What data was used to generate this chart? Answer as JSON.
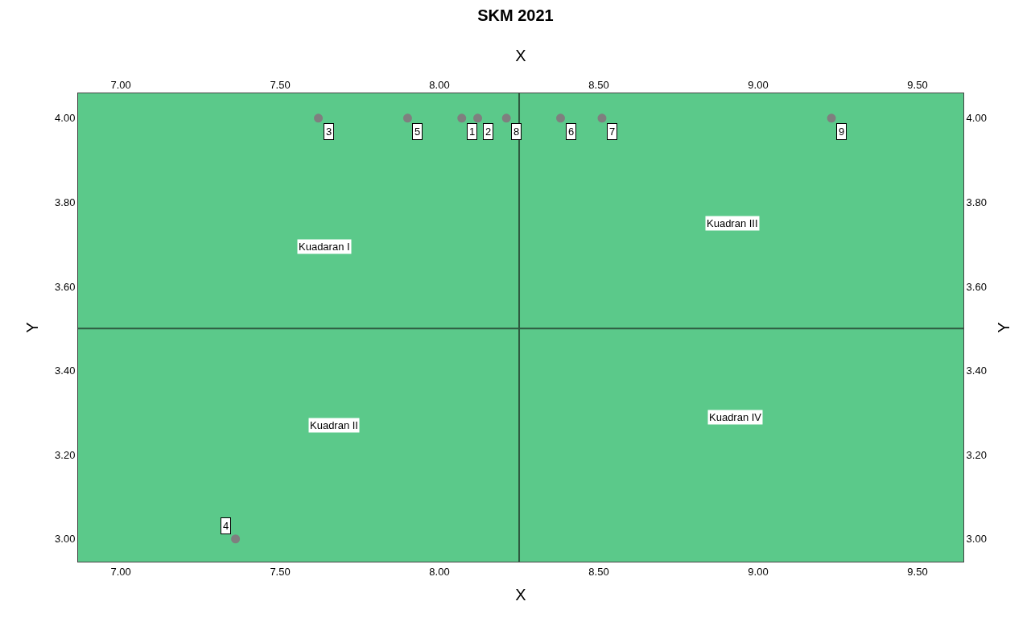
{
  "chart_data": {
    "type": "scatter",
    "title": "SKM 2021",
    "xlabel": "X",
    "x2label": "X",
    "ylabel": "Y",
    "y2label": "Y",
    "x": [
      8.07,
      8.12,
      7.62,
      7.36,
      7.9,
      8.38,
      8.51,
      8.21,
      9.23
    ],
    "series": [
      {
        "color": "#7f7f7f",
        "values": [
          4.0,
          4.0,
          4.0,
          3.0,
          4.0,
          4.0,
          4.0,
          4.0,
          4.0
        ]
      }
    ],
    "marker": "circle",
    "xlim": [
      6.866,
      9.644
    ],
    "xticks": [
      {
        "value": 7,
        "label": "7.00"
      },
      {
        "value": 7.5,
        "label": "7.50"
      },
      {
        "value": 8,
        "label": "8.00"
      },
      {
        "value": 8.5,
        "label": "8.50"
      },
      {
        "value": 9,
        "label": "9.00"
      },
      {
        "value": 9.5,
        "label": "9.50"
      }
    ],
    "x2lim": [
      6.866,
      9.644
    ],
    "x2ticks": [
      {
        "value": 7,
        "label": "7.00"
      },
      {
        "value": 7.5,
        "label": "7.50"
      },
      {
        "value": 8,
        "label": "8.00"
      },
      {
        "value": 8.5,
        "label": "8.50"
      },
      {
        "value": 9,
        "label": "9.00"
      },
      {
        "value": 9.5,
        "label": "9.50"
      }
    ],
    "ylim": [
      2.946,
      4.059
    ],
    "yticks": [
      {
        "value": 3,
        "label": "3.00"
      },
      {
        "value": 3.2,
        "label": "3.20"
      },
      {
        "value": 3.4,
        "label": "3.40"
      },
      {
        "value": 3.6,
        "label": "3.60"
      },
      {
        "value": 3.8,
        "label": "3.80"
      },
      {
        "value": 4,
        "label": "4.00"
      }
    ],
    "y2lim": [
      2.946,
      4.059
    ],
    "y2ticks": [
      {
        "value": 3,
        "label": "3.00"
      },
      {
        "value": 3.2,
        "label": "3.20"
      },
      {
        "value": 3.4,
        "label": "3.40"
      },
      {
        "value": 3.6,
        "label": "3.60"
      },
      {
        "value": 3.8,
        "label": "3.80"
      },
      {
        "value": 4,
        "label": "4.00"
      }
    ],
    "ref_lines": [
      {
        "axis": "x",
        "value": 8.25,
        "color": "#2e5a40"
      },
      {
        "axis": "y",
        "value": 3.5,
        "color": "#2e5a40"
      }
    ],
    "annotations": [
      "Kuadaran I",
      "Kuadran II",
      "Kuadran III",
      "Kuadran IV",
      {
        "text": "1",
        "x": 8.07,
        "y": 4.0
      },
      {
        "text": "2",
        "x": 8.12,
        "y": 4.0
      },
      {
        "text": "3",
        "x": 7.62,
        "y": 4.0
      },
      {
        "text": "4",
        "x": 7.36,
        "y": 3.0
      },
      {
        "text": "5",
        "x": 7.9,
        "y": 4.0
      },
      {
        "text": "6",
        "x": 8.38,
        "y": 4.0
      },
      {
        "text": "7",
        "x": 8.51,
        "y": 4.0
      },
      {
        "text": "8",
        "x": 8.21,
        "y": 4.0
      },
      {
        "text": "9",
        "x": 9.23,
        "y": 4.0
      }
    ],
    "grid": false
  }
}
